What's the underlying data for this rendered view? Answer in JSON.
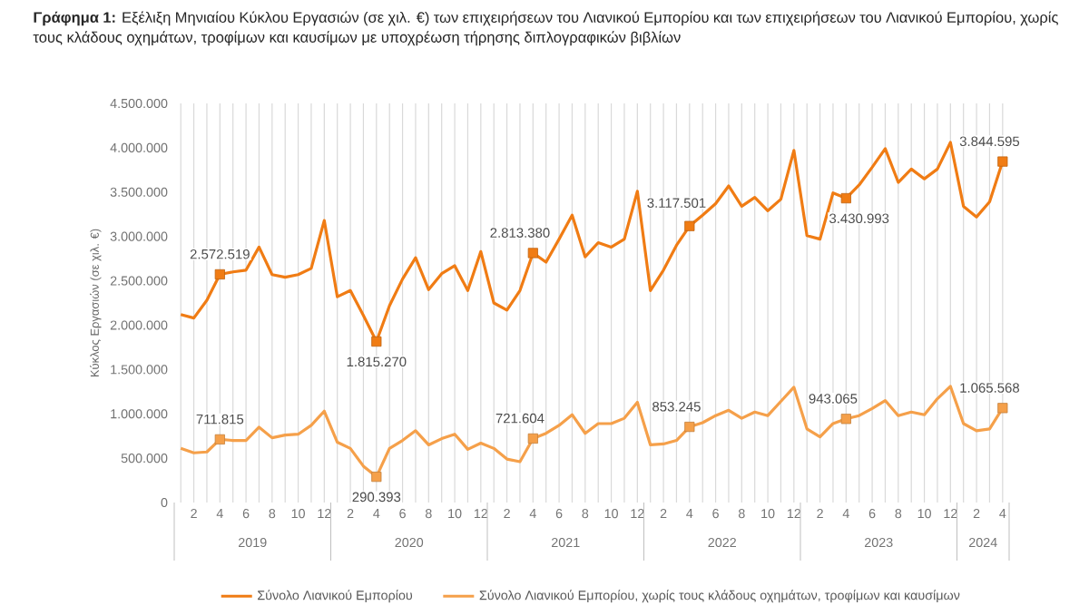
{
  "chart_data": {
    "type": "line",
    "title": "**Γράφημα 1:** Εξέλιξη Μηνιαίου Κύκλου Εργασιών (σε χιλ. €) των επιχειρήσεων του Λιανικού Εμπορίου και των επιχειρήσεων του Λιανικού Εμπορίου, χωρίς τους κλάδους οχημάτων, τροφίμων και καυσίμων με υποχρέωση τήρησης διπλογραφικών βιβλίων",
    "ylabel": "Κύκλος Εργασιών (σε χιλ. €)",
    "categories": [
      null,
      "2",
      null,
      "4",
      null,
      "6",
      null,
      "8",
      null,
      "10",
      null,
      "12",
      null,
      "2",
      null,
      "4",
      null,
      "6",
      null,
      "8",
      null,
      "10",
      null,
      "12",
      null,
      "2",
      null,
      "4",
      null,
      "6",
      null,
      "8",
      null,
      "10",
      null,
      "12",
      null,
      "2",
      null,
      "4",
      null,
      "6",
      null,
      "8",
      null,
      "10",
      null,
      "12",
      null,
      "2",
      null,
      "4",
      null,
      "6",
      null,
      "8",
      null,
      "10",
      null,
      "12",
      null,
      "2",
      null,
      "4"
    ],
    "annotations": [
      "2019",
      "2020",
      "2021",
      "2022",
      "2023",
      "2024"
    ],
    "series": [
      {
        "name": "Σύνολο Λιανικού Εμπορίου",
        "color": "#f07c14",
        "values": [
          2120000,
          2080000,
          2280000,
          2572519,
          2600000,
          2620000,
          2880000,
          2570000,
          2540000,
          2570000,
          2640000,
          3180000,
          2320000,
          2390000,
          2110000,
          1815270,
          2220000,
          2520000,
          2760000,
          2400000,
          2580000,
          2670000,
          2390000,
          2830000,
          2250000,
          2170000,
          2390000,
          2813380,
          2710000,
          2970000,
          3240000,
          2770000,
          2930000,
          2880000,
          2970000,
          3510000,
          2390000,
          2620000,
          2900000,
          3117501,
          3240000,
          3370000,
          3570000,
          3340000,
          3440000,
          3290000,
          3420000,
          3970000,
          3010000,
          2970000,
          3490000,
          3430993,
          3580000,
          3780000,
          3990000,
          3610000,
          3760000,
          3650000,
          3760000,
          4060000,
          3340000,
          3220000,
          3390000,
          3844595
        ],
        "value_labels": [
          null,
          null,
          null,
          "2.572.519",
          null,
          null,
          null,
          null,
          null,
          null,
          null,
          null,
          null,
          null,
          null,
          "1.815.270",
          null,
          null,
          null,
          null,
          null,
          null,
          null,
          null,
          null,
          null,
          null,
          "2.813.380",
          null,
          null,
          null,
          null,
          null,
          null,
          null,
          null,
          null,
          null,
          null,
          "3.117.501",
          null,
          null,
          null,
          null,
          null,
          null,
          null,
          null,
          null,
          null,
          null,
          "3.430.993",
          null,
          null,
          null,
          null,
          null,
          null,
          null,
          null,
          null,
          null,
          null,
          "3.844.595"
        ]
      },
      {
        "name": "Σύνολο Λιανικού Εμπορίου, χωρίς τους κλάδους οχημάτων, τροφίμων και καυσίμων",
        "color": "#f5a04a",
        "values": [
          610000,
          560000,
          570000,
          711815,
          700000,
          700000,
          850000,
          730000,
          760000,
          770000,
          870000,
          1030000,
          680000,
          610000,
          410000,
          290393,
          610000,
          700000,
          810000,
          650000,
          720000,
          770000,
          600000,
          670000,
          610000,
          490000,
          460000,
          721604,
          780000,
          870000,
          990000,
          780000,
          890000,
          890000,
          950000,
          1130000,
          650000,
          660000,
          700000,
          853245,
          900000,
          980000,
          1040000,
          950000,
          1020000,
          980000,
          1140000,
          1300000,
          830000,
          740000,
          890000,
          943065,
          980000,
          1060000,
          1150000,
          980000,
          1020000,
          990000,
          1170000,
          1310000,
          890000,
          810000,
          830000,
          1065568
        ],
        "value_labels": [
          null,
          null,
          null,
          "711.815",
          null,
          null,
          null,
          null,
          null,
          null,
          null,
          null,
          null,
          null,
          null,
          "290.393",
          null,
          null,
          null,
          null,
          null,
          null,
          null,
          null,
          null,
          null,
          null,
          "721.604",
          null,
          null,
          null,
          null,
          null,
          null,
          null,
          null,
          null,
          null,
          null,
          "853.245",
          null,
          null,
          null,
          null,
          null,
          null,
          null,
          null,
          null,
          null,
          null,
          "943.065",
          null,
          null,
          null,
          null,
          null,
          null,
          null,
          null,
          null,
          null,
          null,
          "1.065.568"
        ]
      }
    ],
    "ylim": [
      0,
      4500000
    ],
    "yticks": [
      0,
      {
        "value": 500000,
        "label": "500.000"
      },
      {
        "value": 1000000,
        "label": "1.000.000"
      },
      {
        "value": 1500000,
        "label": "1.500.000"
      },
      {
        "value": 2000000,
        "label": "2.000.000"
      },
      {
        "value": 2500000,
        "label": "2.500.000"
      },
      {
        "value": 3000000,
        "label": "3.000.000"
      },
      {
        "value": 3500000,
        "label": "3.500.000"
      },
      {
        "value": 4000000,
        "label": "4.000.000"
      },
      {
        "value": 4500000,
        "label": "4.500.000"
      }
    ],
    "grid": "x",
    "legend": "bottom",
    "line_style": "solid"
  }
}
